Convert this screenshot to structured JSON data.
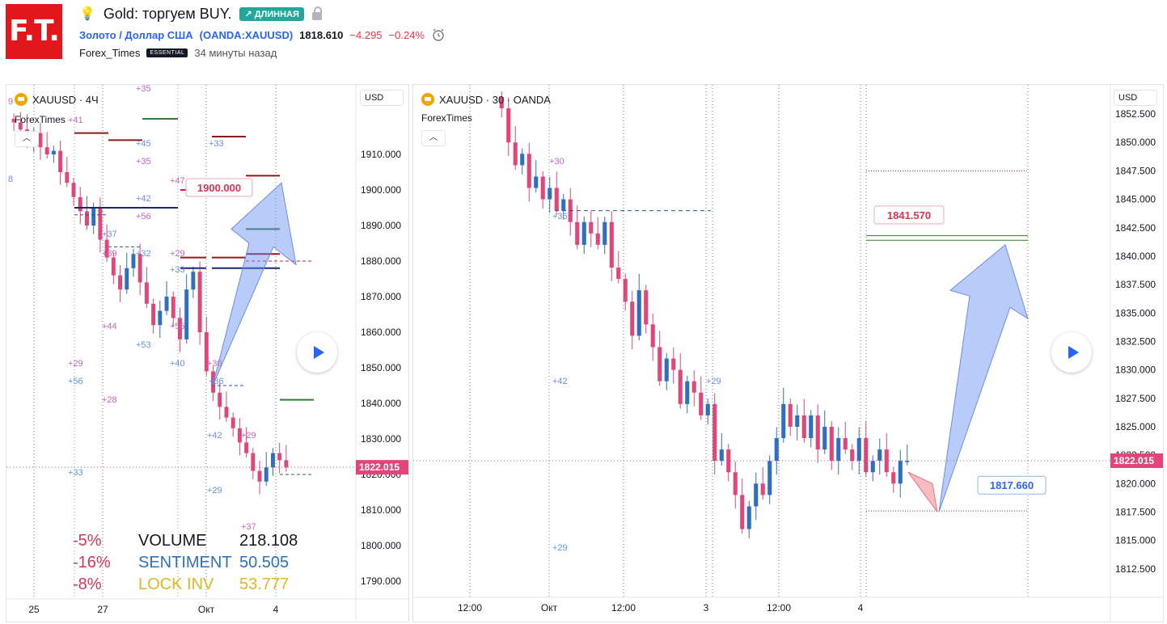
{
  "header": {
    "logo_text": "F.T.",
    "idea_title": "Gold: торгуем BUY.",
    "direction_badge": "↗ ДЛИННАЯ",
    "symbol_name": "Золото / Доллар США",
    "symbol_code": "(OANDA:XAUUSD)",
    "last_price": "1818.610",
    "change": "−4.295",
    "change_pct": "−0.24%",
    "author": "Forex_Times",
    "plan_badge": "ESSENTIAL",
    "published": "34 минуты назад"
  },
  "colors": {
    "brand_red": "#e3171b",
    "up": "#26a69a",
    "down": "#f23645",
    "link": "#2962ff",
    "candle_up": "#2e6fbf",
    "candle_down": "#e0467a"
  },
  "icons": [
    "bulb-icon",
    "lock-icon",
    "alarm-icon",
    "gold-coin-icon",
    "chevron-up-icon",
    "play-icon"
  ],
  "chart_data": [
    {
      "type": "candlestick",
      "symbol": "XAUUSD · 4Ч",
      "indicator_label": "ForexTimes",
      "currency_label": "USD",
      "ylim": [
        1785,
        1925
      ],
      "y_ticks": [
        "1790.000",
        "1800.000",
        "1810.000",
        "1820.000",
        "1830.000",
        "1840.000",
        "1850.000",
        "1860.000",
        "1870.000",
        "1880.000",
        "1890.000",
        "1900.000",
        "1910.000"
      ],
      "x_ticks": [
        "25",
        "27",
        "Окт",
        "4"
      ],
      "current_price": "1822.015",
      "target_label": "1900.000",
      "stats": [
        {
          "pct": "-5%",
          "name": "VOLUME",
          "value": "218.108"
        },
        {
          "pct": "-16%",
          "name": "SENTIMENT",
          "value": "50.505"
        },
        {
          "pct": "-8%",
          "name": "LOCK INV",
          "value": "53.777"
        }
      ],
      "annotations": [
        "+35",
        "+45",
        "+35",
        "+33",
        "+47",
        "+42",
        "+56",
        "+37",
        "+39",
        "+32",
        "+29",
        "+33",
        "+44",
        "+53",
        "+56",
        "+40",
        "+30",
        "+36",
        "+29",
        "+56",
        "+28",
        "+42",
        "+29",
        "+29",
        "+37",
        "+33",
        "+41",
        "8",
        "9"
      ],
      "closes": [
        1919,
        1917,
        1913,
        1916,
        1912,
        1910,
        1911,
        1905,
        1902,
        1898,
        1894,
        1890,
        1895,
        1886,
        1881,
        1876,
        1872,
        1878,
        1882,
        1874,
        1868,
        1862,
        1866,
        1870,
        1864,
        1858,
        1872,
        1877,
        1860,
        1849,
        1843,
        1839,
        1836,
        1833,
        1829,
        1826,
        1821,
        1818,
        1822,
        1826,
        1824,
        1822
      ]
    },
    {
      "type": "candlestick",
      "symbol": "XAUUSD · 30 · OANDA",
      "indicator_label": "ForexTimes",
      "currency_label": "USD",
      "ylim": [
        1810,
        1853.5
      ],
      "y_ticks": [
        "1812.500",
        "1815.000",
        "1817.500",
        "1820.000",
        "1822.500",
        "1825.000",
        "1827.500",
        "1830.000",
        "1832.500",
        "1835.000",
        "1837.500",
        "1840.000",
        "1842.500",
        "1845.000",
        "1847.500",
        "1850.000",
        "1852.500"
      ],
      "x_ticks": [
        "12:00",
        "Окт",
        "12:00",
        "3",
        "12:00",
        "4"
      ],
      "current_price": "1822.015",
      "target_label": "1841.570",
      "stop_label": "1817.660",
      "annotations": [
        "+30",
        "+36",
        "+42",
        "+29",
        "+29"
      ],
      "closes": [
        1853,
        1850,
        1848,
        1849,
        1846,
        1847,
        1845,
        1846,
        1844,
        1845,
        1843,
        1841,
        1843,
        1842,
        1841,
        1843,
        1839,
        1838,
        1836,
        1833,
        1837,
        1834,
        1832,
        1829,
        1831,
        1830,
        1827,
        1829,
        1828,
        1826,
        1827,
        1822,
        1823,
        1821,
        1819,
        1816,
        1818,
        1820,
        1819,
        1822,
        1824,
        1827,
        1825,
        1826,
        1824,
        1826,
        1823,
        1825,
        1822,
        1824,
        1823,
        1822,
        1824,
        1821,
        1822,
        1823,
        1821,
        1820,
        1822,
        1822
      ]
    }
  ]
}
